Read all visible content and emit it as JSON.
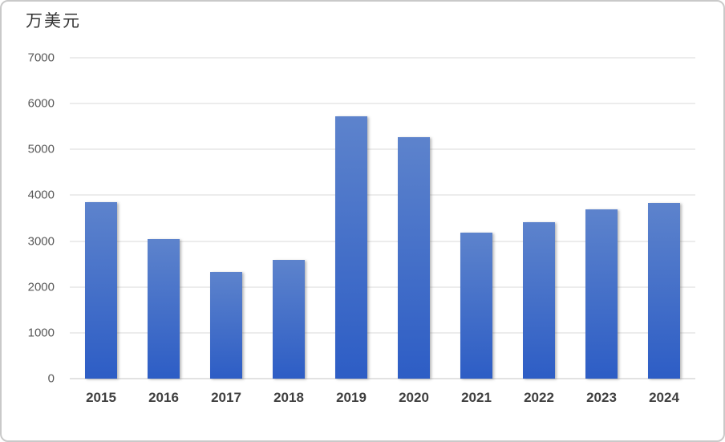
{
  "card": {
    "background": "#ffffff",
    "border_color": "#c9c9c9"
  },
  "chart_data": {
    "type": "bar",
    "title": "万美元",
    "categories": [
      "2015",
      "2016",
      "2017",
      "2018",
      "2019",
      "2020",
      "2021",
      "2022",
      "2023",
      "2024"
    ],
    "values": [
      3850,
      3040,
      2330,
      2590,
      5730,
      5270,
      3180,
      3420,
      3690,
      3830
    ],
    "series_name": "",
    "xlabel": "",
    "ylabel": "万美元",
    "ylim": [
      0,
      7000
    ],
    "yticks": [
      0,
      1000,
      2000,
      3000,
      4000,
      5000,
      6000,
      7000
    ],
    "grid": true,
    "legend_position": "none",
    "colors": {
      "bar_gradient_top": "#5d83cc",
      "bar_gradient_bottom": "#2d5dc5",
      "gridline": "#d9d9d9",
      "axis_line": "#c6c6c6",
      "ytick_label": "#595959",
      "xtick_label": "#404040",
      "title": "#333333"
    }
  }
}
